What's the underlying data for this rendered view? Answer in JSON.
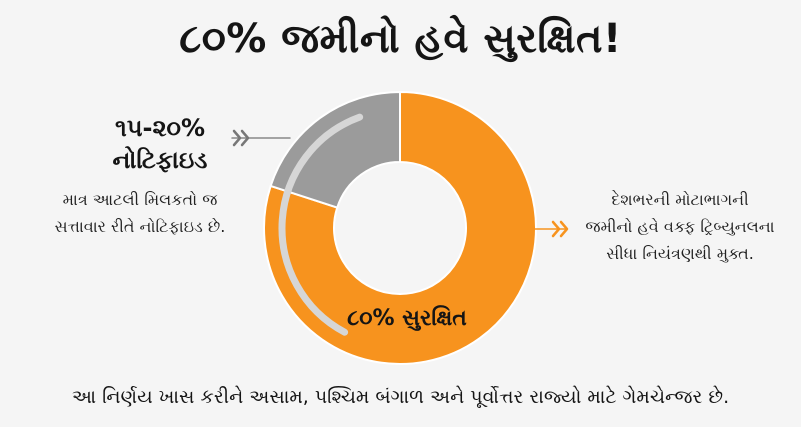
{
  "title": "૮૦% જમીનો હવે સુરક્ષિત!",
  "left_callout": {
    "heading_line1": "૧૫-૨૦%",
    "heading_line2": "નોટિફાઇડ",
    "desc_line1": "માત્ર આટલી મિલકતો જ",
    "desc_line2": "સત્તાવાર રીતે નોટિફાઇડ છે."
  },
  "right_callout": {
    "line1": "દેશભરની મોટાભાગની",
    "line2": "જમીનો હવે વક્ફ ટ્રિબ્યુનલના",
    "line3": "સીધા નિયંત્રણથી મુક્ત."
  },
  "footer": "આ નિર્ણય ખાસ કરીને અસામ, પશ્ચિમ બંગાળ અને પૂર્વોત્તર રાજ્યો માટે ગેમચેન્જર છે.",
  "chart_data": {
    "type": "pie",
    "style": "donut",
    "slices": [
      {
        "label": "૮૦% સુરક્ષિત",
        "value": 80,
        "color": "#f7931e"
      },
      {
        "label": "૧૫-૨૦% નોટિફાઇડ",
        "value": 20,
        "color": "#9b9b9b"
      }
    ]
  },
  "colors": {
    "protected": "#f7931e",
    "notified": "#9b9b9b",
    "arc_highlight": "#d6d6d6",
    "text": "#151515"
  }
}
